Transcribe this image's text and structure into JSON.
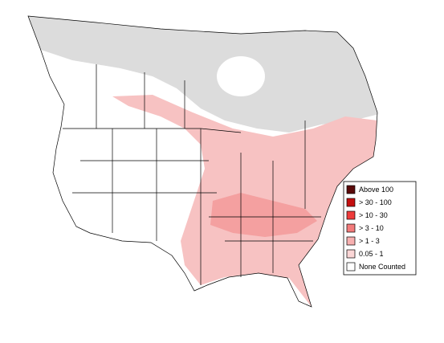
{
  "legend": {
    "items": [
      {
        "label": "Above 100",
        "color": "#5a0a0a"
      },
      {
        "label": "> 30 - 100",
        "color": "#c40f0f"
      },
      {
        "label": "> 10 - 30",
        "color": "#ee3b3b"
      },
      {
        "label": "> 3 - 10",
        "color": "#f37b7b"
      },
      {
        "label": "> 1 - 3",
        "color": "#f7b0b0"
      },
      {
        "label": "0.05 - 1",
        "color": "#fbd6d6"
      },
      {
        "label": "None Counted",
        "color": "#ffffff"
      }
    ]
  }
}
